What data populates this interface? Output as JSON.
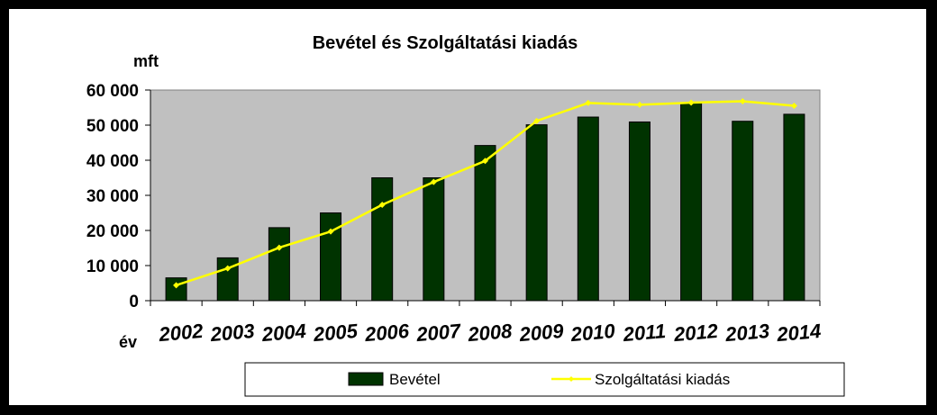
{
  "chart_data": {
    "type": "bar",
    "title": "Bevétel és Szolgáltatási kiadás",
    "ylabel": "mft",
    "xlabel": "év",
    "categories": [
      "2002",
      "2003",
      "2004",
      "2005",
      "2006",
      "2007",
      "2008",
      "2009",
      "2010",
      "2011",
      "2012",
      "2013",
      "2014"
    ],
    "ylim": [
      0,
      60000
    ],
    "yticks": [
      0,
      10000,
      20000,
      30000,
      40000,
      50000,
      60000
    ],
    "ytick_labels": [
      "0",
      "10 000",
      "20 000",
      "30 000",
      "40 000",
      "50 000",
      "60 000"
    ],
    "grid": false,
    "plot_background": "#c0c0c0",
    "legend_position": "bottom",
    "series": [
      {
        "name": "Bevétel",
        "type": "bar",
        "color": "#003300",
        "values": [
          6500,
          12200,
          20800,
          25000,
          35000,
          35000,
          44200,
          50100,
          52300,
          50900,
          56300,
          51100,
          53100
        ]
      },
      {
        "name": "Szolgáltatási kiadás",
        "type": "line",
        "color": "#ffff00",
        "values": [
          4400,
          9200,
          15100,
          19700,
          27300,
          33800,
          39800,
          51200,
          56300,
          55800,
          56400,
          56800,
          55500
        ]
      }
    ]
  }
}
